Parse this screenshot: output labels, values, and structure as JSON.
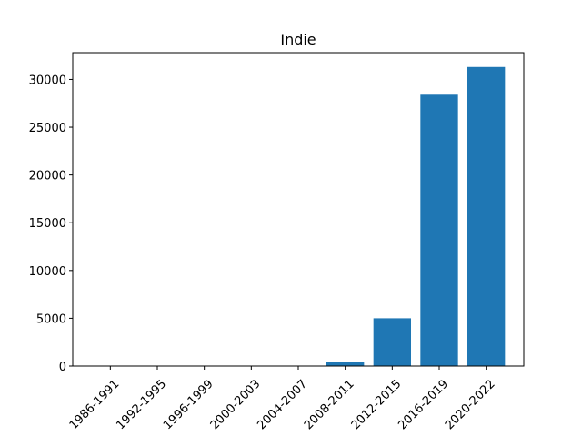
{
  "chart_data": {
    "type": "bar",
    "title": "Indie",
    "xlabel": "",
    "ylabel": "",
    "categories": [
      "1986-1991",
      "1992-1995",
      "1996-1999",
      "2000-2003",
      "2004-2007",
      "2008-2011",
      "2012-2015",
      "2016-2019",
      "2020-2022"
    ],
    "values": [
      3,
      5,
      8,
      10,
      15,
      400,
      5000,
      28400,
      31300
    ],
    "ylim": [
      0,
      32800
    ],
    "yticks": [
      0,
      5000,
      10000,
      15000,
      20000,
      25000,
      30000
    ],
    "grid": false,
    "legend": "none",
    "bar_color": "#1f77b4"
  }
}
